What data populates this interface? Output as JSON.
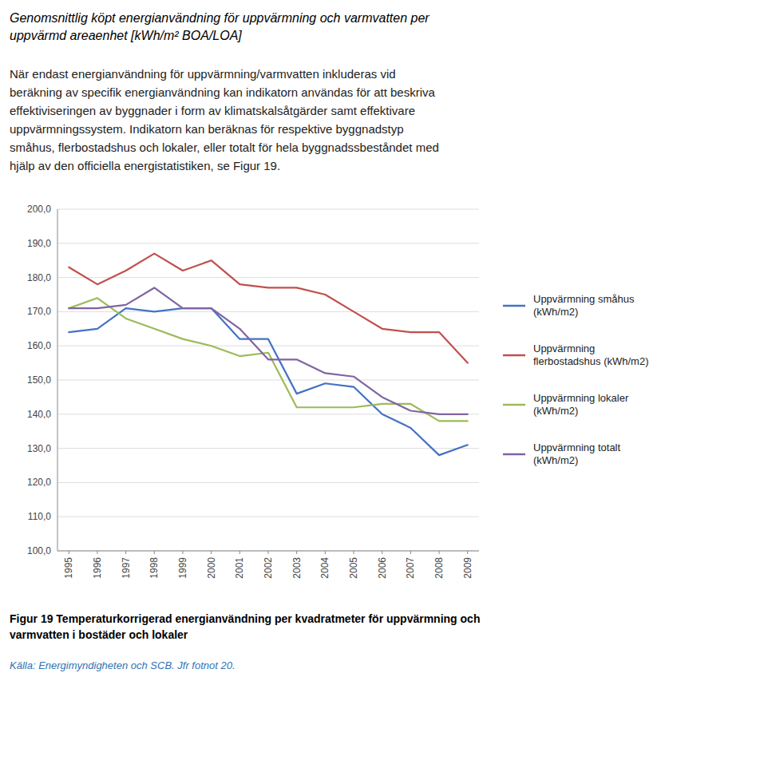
{
  "chart_data": {
    "type": "line",
    "title": "Genomsnittlig köpt energianvändning för uppvärmning och varmvatten per\nuppvärmd areaenhet [kWh/m² BOA/LOA]",
    "subtitle": "När endast energianvändning för uppvärmning/varmvatten inkluderas vid\nberäkning av specifik energianvändning kan indikatorn användas för att beskriva\neffektiviseringen av byggnader i form av klimatskalsåtgärder samt effektivare\nuppvärmningssystem. Indikatorn kan beräknas för respektive byggnadstyp\nsmåhus, flerbostadshus och lokaler, eller totalt för hela byggnadssbeståndet med\nhjälp av den officiella energistatistiken, se Figur 19.",
    "annotations": [
      "Figur 19 Temperaturkorrigerad energianvändning per kvadratmeter för uppvärmning och\nvarmvatten i bostäder och lokaler",
      "Källa: Energimyndigheten och SCB. Jfr fotnot 20."
    ],
    "x": [
      1995,
      1996,
      1997,
      1998,
      1999,
      2000,
      2001,
      2002,
      2003,
      2004,
      2005,
      2006,
      2007,
      2008,
      2009
    ],
    "xlim": [
      1994.6,
      2009.4
    ],
    "xticks": [
      1995,
      1996,
      1997,
      1998,
      1999,
      2000,
      2001,
      2002,
      2003,
      2004,
      2005,
      2006,
      2007,
      2008,
      2009
    ],
    "ylim": [
      100,
      200
    ],
    "yticks": [
      {
        "value": 100,
        "label": "100,0"
      },
      {
        "value": 110,
        "label": "110,0"
      },
      {
        "value": 120,
        "label": "120,0"
      },
      {
        "value": 130,
        "label": "130,0"
      },
      {
        "value": 140,
        "label": "140,0"
      },
      {
        "value": 150,
        "label": "150,0"
      },
      {
        "value": 160,
        "label": "160,0"
      },
      {
        "value": 170,
        "label": "170,0"
      },
      {
        "value": 180,
        "label": "180,0"
      },
      {
        "value": 190,
        "label": "190,0"
      },
      {
        "value": 200,
        "label": "200,0"
      }
    ],
    "grid": true,
    "legend": "right",
    "series": [
      {
        "name": "Uppvärmning småhus\n(kWh/m2)",
        "color": "#4472C4",
        "values": [
          164,
          165,
          171,
          170,
          171,
          171,
          162,
          162,
          146,
          149,
          148,
          140,
          136,
          128,
          131
        ]
      },
      {
        "name": "Uppvärmning\nflerbostadshus (kWh/m2)",
        "color": "#C0504D",
        "values": [
          183,
          178,
          182,
          187,
          182,
          185,
          178,
          177,
          177,
          175,
          170,
          165,
          164,
          164,
          155
        ]
      },
      {
        "name": "Uppvärmning lokaler\n(kWh/m2)",
        "color": "#9BBB59",
        "values": [
          171,
          174,
          168,
          165,
          162,
          160,
          157,
          158,
          142,
          142,
          142,
          143,
          143,
          138,
          138
        ]
      },
      {
        "name": "Uppvärmning totalt\n(kWh/m2)",
        "color": "#8064A2",
        "values": [
          171,
          171,
          172,
          177,
          171,
          171,
          165,
          156,
          156,
          152,
          151,
          145,
          141,
          140,
          140
        ]
      }
    ]
  }
}
